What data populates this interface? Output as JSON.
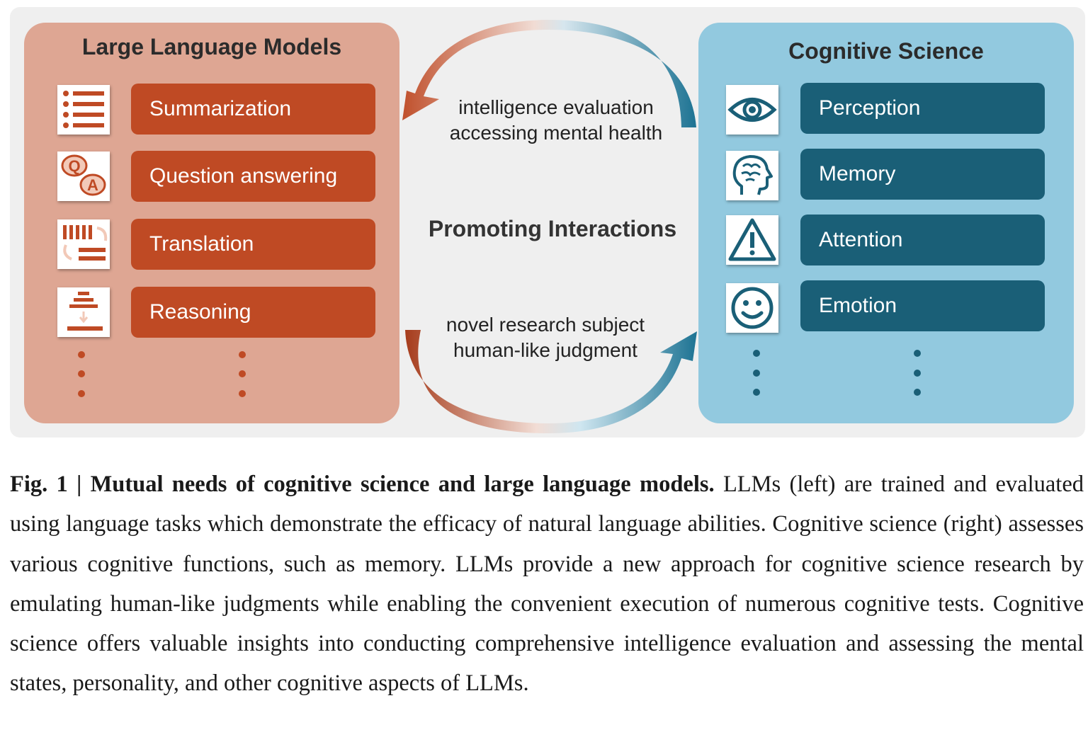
{
  "llm": {
    "title": "Large Language Models",
    "tasks": [
      "Summarization",
      "Question answering",
      "Translation",
      "Reasoning"
    ],
    "icons": [
      "list-icon",
      "qa-icon",
      "translation-icon",
      "reasoning-icon"
    ],
    "color": "#bf4a24",
    "panel_color": "#dea693"
  },
  "cs": {
    "title": "Cognitive Science",
    "tasks": [
      "Perception",
      "Memory",
      "Attention",
      "Emotion"
    ],
    "icons": [
      "eye-icon",
      "brain-icon",
      "warning-icon",
      "smiley-icon"
    ],
    "color": "#1a5f77",
    "panel_color": "#92c9df"
  },
  "interaction": {
    "label": "Promoting Interactions",
    "top_lines": [
      "intelligence evaluation",
      "accessing mental health"
    ],
    "bottom_lines": [
      "novel research subject",
      "human-like judgment"
    ]
  },
  "caption": {
    "lead": "Fig. 1 | Mutual needs of cognitive science and large language models.",
    "body": "LLMs (left) are trained and evaluated using language tasks which demonstrate the efficacy of natural language abilities. Cognitive science (right) assesses various cognitive functions, such as memory. LLMs provide a new approach for cognitive science research by emulating human-like judgments while enabling the convenient execution of numerous cognitive tests. Cognitive science offers valuable insights into conducting comprehensive intelligence evaluation and assessing the mental states, personality, and other cognitive aspects of LLMs."
  }
}
